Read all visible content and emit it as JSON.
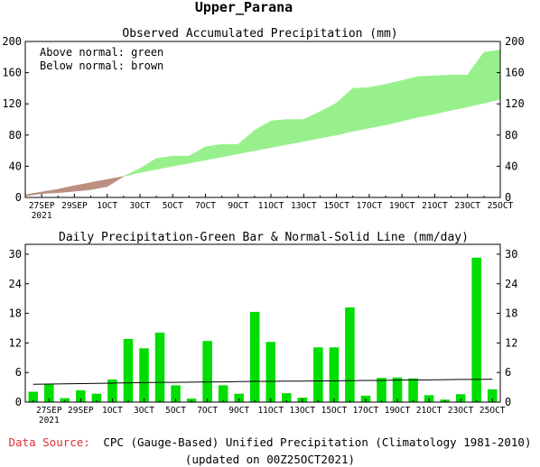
{
  "page": {
    "title": "Upper_Parana",
    "source_label": "Data Source:",
    "source_text": "CPC (Gauge-Based) Unified Precipitation (Climatology 1981-2010)",
    "updated": "(updated on 00Z25OCT2021)",
    "colors": {
      "above": "#98f08c",
      "below": "#bc8f80",
      "bar": "#00dd00",
      "source_label": "#e03030"
    }
  },
  "chart_data": [
    {
      "type": "area",
      "title": "Observed Accumulated Precipitation (mm)",
      "annotations": [
        "Above normal: green",
        "Below normal: brown"
      ],
      "ylim": [
        0,
        200
      ],
      "yticks": [
        0,
        40,
        80,
        120,
        160,
        200
      ],
      "xtick_labels": [
        "27SEP",
        "29SEP",
        "1OCT",
        "3OCT",
        "5OCT",
        "7OCT",
        "9OCT",
        "11OCT",
        "13OCT",
        "15OCT",
        "17OCT",
        "19OCT",
        "21OCT",
        "23OCT",
        "25OCT"
      ],
      "year_label": "2021",
      "x": [
        "26SEP",
        "27SEP",
        "28SEP",
        "29SEP",
        "30SEP",
        "1OCT",
        "2OCT",
        "3OCT",
        "4OCT",
        "5OCT",
        "6OCT",
        "7OCT",
        "8OCT",
        "9OCT",
        "10OCT",
        "11OCT",
        "12OCT",
        "13OCT",
        "14OCT",
        "15OCT",
        "16OCT",
        "17OCT",
        "18OCT",
        "19OCT",
        "20OCT",
        "21OCT",
        "22OCT",
        "23OCT",
        "24OCT",
        "25OCT"
      ],
      "series": [
        {
          "role": "observed",
          "values": [
            2,
            5,
            6,
            8,
            10,
            14,
            27,
            37,
            50,
            53,
            53,
            65,
            68,
            68,
            86,
            98,
            100,
            100,
            110,
            121,
            140,
            141,
            145,
            150,
            155,
            156,
            157,
            157,
            186,
            189
          ]
        },
        {
          "role": "normal",
          "values": [
            3.5,
            7,
            10.5,
            15,
            19,
            23,
            27,
            32,
            36,
            40,
            44,
            48,
            52,
            56,
            60,
            64,
            68,
            72,
            76,
            80,
            85,
            89,
            93,
            98,
            103,
            107,
            112,
            116,
            121,
            126
          ]
        }
      ]
    },
    {
      "type": "bar",
      "title": "Daily Precipitation-Green Bar & Normal-Solid Line (mm/day)",
      "ylim": [
        0,
        32
      ],
      "yticks": [
        0,
        6,
        12,
        18,
        24,
        30
      ],
      "xtick_labels": [
        "27SEP",
        "29SEP",
        "1OCT",
        "3OCT",
        "5OCT",
        "7OCT",
        "9OCT",
        "11OCT",
        "13OCT",
        "15OCT",
        "17OCT",
        "19OCT",
        "21OCT",
        "23OCT",
        "25OCT"
      ],
      "year_label": "2021",
      "x": [
        "26SEP",
        "27SEP",
        "28SEP",
        "29SEP",
        "30SEP",
        "1OCT",
        "2OCT",
        "3OCT",
        "4OCT",
        "5OCT",
        "6OCT",
        "7OCT",
        "8OCT",
        "9OCT",
        "10OCT",
        "11OCT",
        "12OCT",
        "13OCT",
        "14OCT",
        "15OCT",
        "16OCT",
        "17OCT",
        "18OCT",
        "19OCT",
        "20OCT",
        "21OCT",
        "22OCT",
        "23OCT",
        "24OCT",
        "25OCT"
      ],
      "values": [
        2.1,
        3.6,
        0.8,
        2.4,
        1.7,
        4.6,
        12.8,
        10.9,
        14.1,
        3.4,
        0.7,
        12.4,
        3.4,
        1.7,
        18.3,
        12.2,
        1.8,
        0.9,
        11.1,
        11.1,
        19.2,
        1.3,
        4.9,
        5.0,
        4.8,
        1.4,
        0.5,
        1.6,
        29.3,
        2.6
      ],
      "normal": [
        3.6,
        3.65,
        3.7,
        3.75,
        3.8,
        3.85,
        3.9,
        3.95,
        4.0,
        4.0,
        4.05,
        4.1,
        4.1,
        4.15,
        4.2,
        4.2,
        4.25,
        4.25,
        4.3,
        4.3,
        4.35,
        4.4,
        4.4,
        4.45,
        4.5,
        4.5,
        4.55,
        4.6,
        4.6,
        4.65
      ]
    }
  ]
}
